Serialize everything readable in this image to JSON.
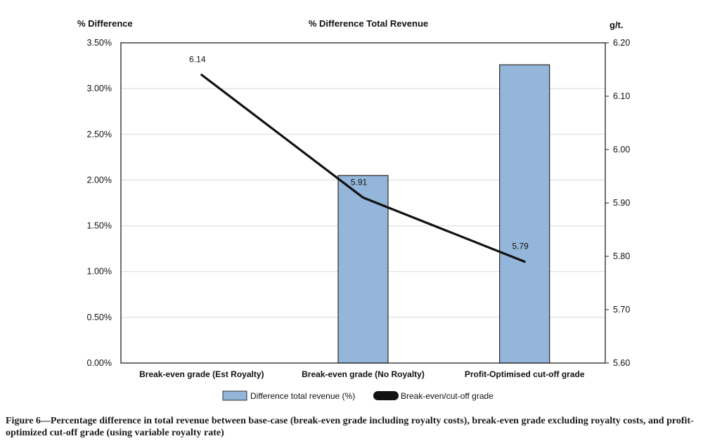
{
  "caption": "Figure 6—Percentage difference in total revenue between base-case (break-even grade including royalty costs), break-even grade excluding royalty costs, and profit-optimized cut-off grade (using variable royalty rate)",
  "chart_data": {
    "type": "bar+line",
    "title": "% Difference Total Revenue",
    "ylabel_left": "% Difference",
    "ylabel_right": "g/t.",
    "categories": [
      "Break-even grade (Est Royalty)",
      "Break-even grade (No Royalty)",
      "Profit-Optimised cut-off grade"
    ],
    "bar_series": {
      "name": "Difference total revenue (%)",
      "values": [
        0,
        2.05,
        3.26
      ],
      "color": "#93b6da"
    },
    "line_series": {
      "name": "Break-even/cut-off grade",
      "values": [
        6.14,
        5.91,
        5.79
      ],
      "labels": [
        "6.14",
        "5.91",
        "5.79"
      ],
      "color": "#111111"
    },
    "y_left_ticks": [
      "0.00%",
      "0.50%",
      "1.00%",
      "1.50%",
      "2.00%",
      "2.50%",
      "3.00%",
      "3.50%"
    ],
    "y_left_range": [
      0,
      3.5
    ],
    "y_right_ticks": [
      "5.60",
      "5.70",
      "5.80",
      "5.90",
      "6.00",
      "6.10",
      "6.20"
    ],
    "y_right_range": [
      5.6,
      6.2
    ],
    "grid": true,
    "legend_position": "bottom"
  }
}
